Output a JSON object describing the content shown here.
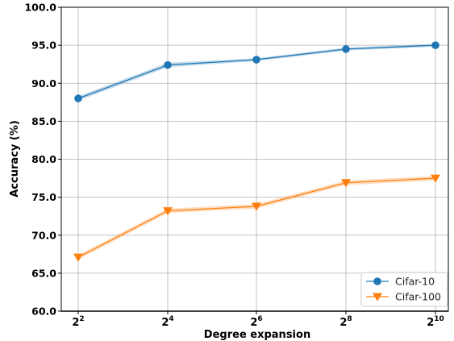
{
  "chart_data": {
    "type": "line",
    "xlabel": "Degree expansion",
    "ylabel": "Accuracy (%)",
    "x_ticks": [
      {
        "base": "2",
        "exp": "2"
      },
      {
        "base": "2",
        "exp": "4"
      },
      {
        "base": "2",
        "exp": "6"
      },
      {
        "base": "2",
        "exp": "8"
      },
      {
        "base": "2",
        "exp": "10"
      }
    ],
    "x": [
      4,
      16,
      64,
      256,
      1024
    ],
    "x_scale": "log2",
    "ylim": [
      60.0,
      100.0
    ],
    "y_ticks": [
      "60.0",
      "65.0",
      "70.0",
      "75.0",
      "80.0",
      "85.0",
      "90.0",
      "95.0",
      "100.0"
    ],
    "grid": true,
    "legend_position": "bottom-right",
    "series": [
      {
        "name": "Cifar-10",
        "color": "#1f77b4",
        "marker": "circle",
        "values": [
          88.0,
          92.4,
          93.1,
          94.5,
          95.0
        ],
        "band": [
          0.3,
          0.3,
          0.2,
          0.2,
          0.2
        ]
      },
      {
        "name": "Cifar-100",
        "color": "#ff7f0e",
        "marker": "triangle-down",
        "values": [
          67.1,
          73.2,
          73.8,
          76.9,
          77.5
        ],
        "band": [
          0.3,
          0.3,
          0.3,
          0.3,
          0.3
        ]
      }
    ]
  }
}
